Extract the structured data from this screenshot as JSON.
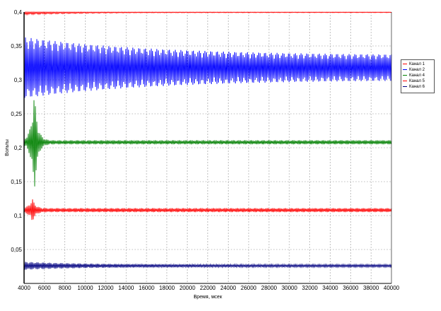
{
  "chart_data": {
    "type": "line",
    "title": "",
    "xlabel": "Время, мсек",
    "ylabel": "Вольты",
    "xlim": [
      4000,
      40000
    ],
    "ylim": [
      0,
      0.4
    ],
    "x_ticks": [
      "4000",
      "6000",
      "8000",
      "10000",
      "12000",
      "14000",
      "16000",
      "18000",
      "20000",
      "22000",
      "24000",
      "26000",
      "28000",
      "30000",
      "32000",
      "34000",
      "36000",
      "38000",
      "40000"
    ],
    "y_ticks": [
      {
        "value": 0.05,
        "label": "0,05"
      },
      {
        "value": 0.1,
        "label": "0,1"
      },
      {
        "value": 0.15,
        "label": "0,15"
      },
      {
        "value": 0.2,
        "label": "0,2"
      },
      {
        "value": 0.25,
        "label": "0,25"
      },
      {
        "value": 0.3,
        "label": "0,3"
      },
      {
        "value": 0.35,
        "label": "0,35"
      },
      {
        "value": 0.4,
        "label": "0,4"
      }
    ],
    "grid": true,
    "legend_position": "right",
    "legend": [
      "Канал 1",
      "Канал 2",
      "Канал 4",
      "Канал 5",
      "Канал 6"
    ],
    "series": [
      {
        "name": "Канал 1",
        "color": "#ff0000",
        "mean": 0.4,
        "amplitude_start": 0.004,
        "amplitude_end": 0.001
      },
      {
        "name": "Канал 2",
        "color": "#0000ff",
        "mean": 0.318,
        "amplitude_start": 0.045,
        "amplitude_end": 0.018
      },
      {
        "name": "Канал 4",
        "color": "#008000",
        "mean": 0.208,
        "amplitude_start": 0.075,
        "amplitude_end": 0.003
      },
      {
        "name": "Канал 5",
        "color": "#ff0000",
        "mean": 0.108,
        "amplitude_start": 0.018,
        "amplitude_end": 0.003
      },
      {
        "name": "Канал 6",
        "color": "#000080",
        "mean": 0.026,
        "amplitude_start": 0.006,
        "amplitude_end": 0.002
      }
    ]
  }
}
